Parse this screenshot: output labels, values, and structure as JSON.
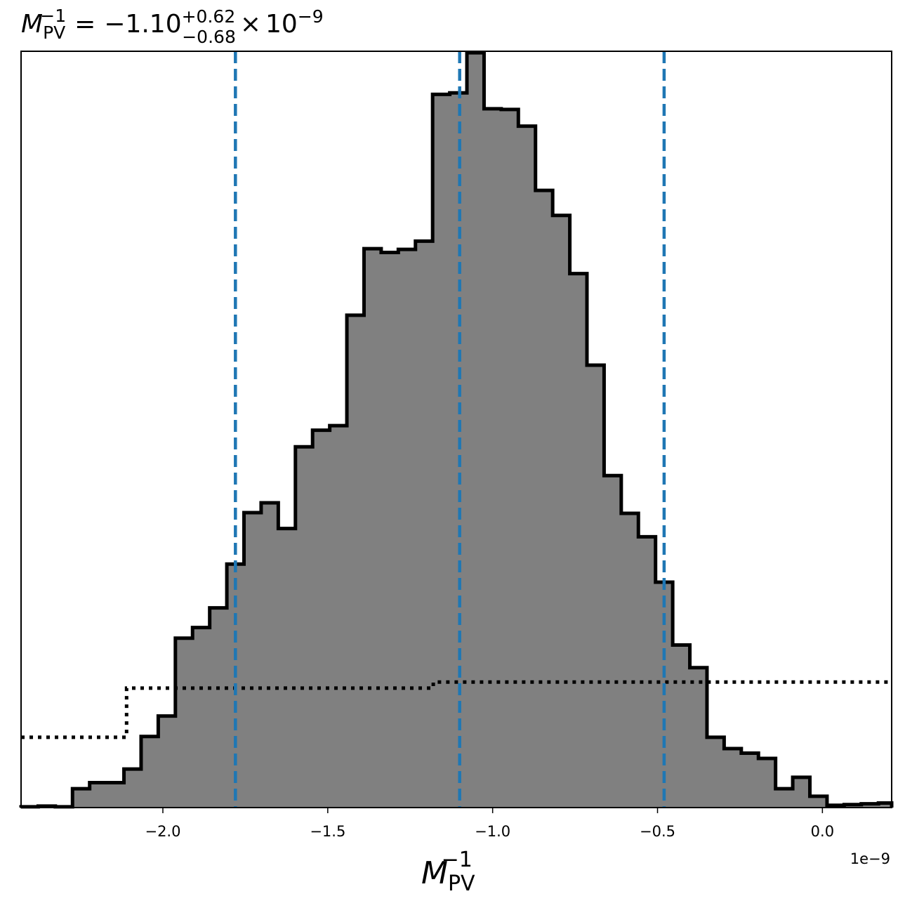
{
  "chart_data": {
    "type": "histogram",
    "title": {
      "symbol": "M",
      "sub": "PV",
      "sup": "−1",
      "equals": "=",
      "median": "−1.10",
      "plus": "+0.62",
      "minus": "−0.68",
      "times": "×",
      "base": "10",
      "exponent": "−9"
    },
    "xlabel": {
      "symbol": "M",
      "sub": "PV",
      "sup": "−1"
    },
    "x_offset_label": "1e−9",
    "xlim": [
      -2.43,
      0.21
    ],
    "ylim": [
      0,
      1.0
    ],
    "xticks": [
      -2.0,
      -1.5,
      -1.0,
      -0.5,
      0.0
    ],
    "xtick_labels": [
      "−2.0",
      "−1.5",
      "−1.0",
      "−0.5",
      "0.0"
    ],
    "grid": false,
    "posterior": {
      "fill_color": "#808080",
      "edge_color": "#000000",
      "bin_edges": [
        -2.43,
        -2.378,
        -2.326,
        -2.274,
        -2.222,
        -2.17,
        -2.118,
        -2.066,
        -2.014,
        -1.962,
        -1.91,
        -1.858,
        -1.806,
        -1.754,
        -1.702,
        -1.65,
        -1.598,
        -1.546,
        -1.494,
        -1.442,
        -1.39,
        -1.338,
        -1.286,
        -1.234,
        -1.182,
        -1.13,
        -1.078,
        -1.026,
        -0.974,
        -0.922,
        -0.87,
        -0.818,
        -0.766,
        -0.714,
        -0.662,
        -0.61,
        -0.558,
        -0.506,
        -0.454,
        -0.402,
        -0.35,
        -0.298,
        -0.246,
        -0.194,
        -0.142,
        -0.09,
        -0.038,
        0.014,
        0.066,
        0.118,
        0.17,
        0.21
      ],
      "counts": [
        0.001,
        0.002,
        0.001,
        0.025,
        0.033,
        0.033,
        0.051,
        0.094,
        0.121,
        0.224,
        0.238,
        0.264,
        0.322,
        0.39,
        0.403,
        0.369,
        0.477,
        0.499,
        0.505,
        0.651,
        0.739,
        0.734,
        0.738,
        0.749,
        0.943,
        0.945,
        0.998,
        0.924,
        0.923,
        0.901,
        0.816,
        0.783,
        0.706,
        0.585,
        0.439,
        0.389,
        0.358,
        0.298,
        0.215,
        0.185,
        0.093,
        0.078,
        0.072,
        0.065,
        0.025,
        0.04,
        0.015,
        0.003,
        0.004,
        0.005,
        0.006
      ]
    },
    "prior": {
      "style": "dotted",
      "color": "#000000",
      "steps": [
        {
          "x0": -2.43,
          "x1": -2.11,
          "y": 0.093
        },
        {
          "x0": -2.11,
          "x1": -1.18,
          "y": 0.158
        },
        {
          "x0": -1.18,
          "x1": 0.21,
          "y": 0.166
        }
      ]
    },
    "quantile_lines": {
      "color": "#1f77b4",
      "style": "dashed",
      "x": [
        -1.78,
        -1.1,
        -0.48
      ]
    }
  }
}
